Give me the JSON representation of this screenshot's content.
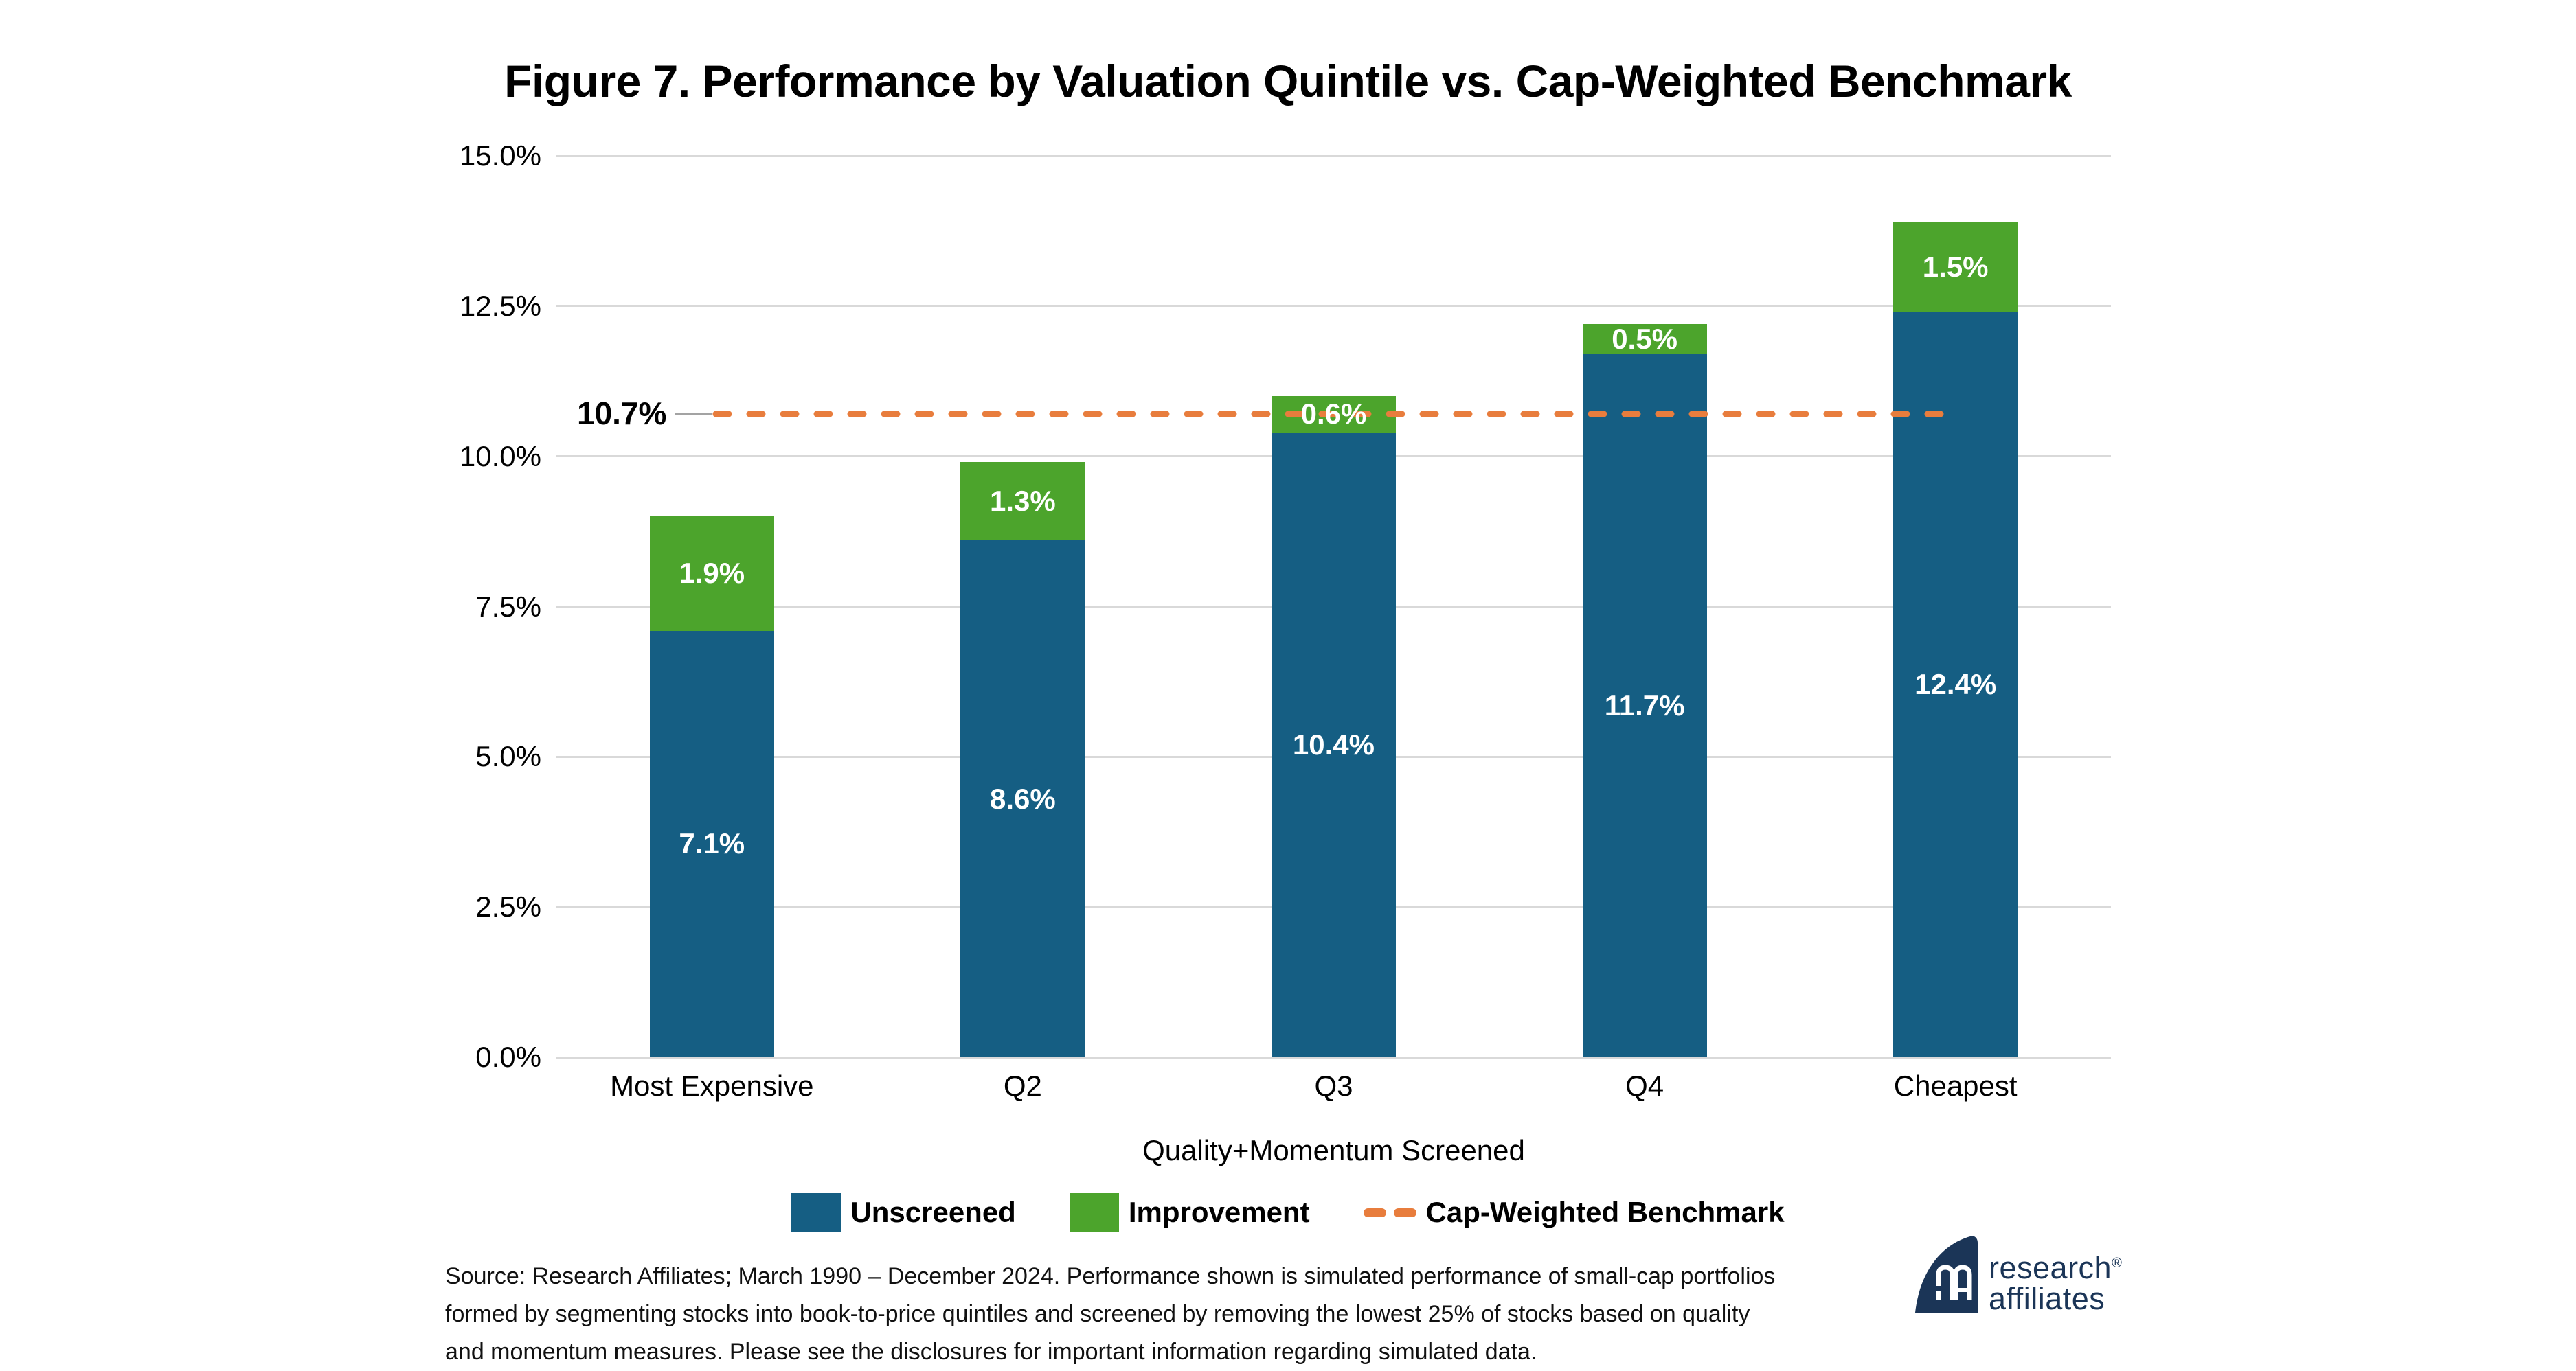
{
  "chart_data": {
    "type": "bar",
    "stacked": true,
    "title": "Figure 7. Performance by Valuation Quintile vs. Cap-Weighted Benchmark",
    "categories": [
      "Most Expensive",
      "Q2",
      "Q3",
      "Q4",
      "Cheapest"
    ],
    "series": [
      {
        "name": "Unscreened",
        "color": "#155E83",
        "values": [
          7.1,
          8.6,
          10.4,
          11.7,
          12.4
        ]
      },
      {
        "name": "Improvement",
        "color": "#4CA42C",
        "values": [
          1.9,
          1.3,
          0.6,
          0.5,
          1.5
        ]
      }
    ],
    "benchmark": {
      "name": "Cap-Weighted Benchmark",
      "value": 10.7,
      "label": "10.7%",
      "color": "#E87D3D",
      "style": "dashed"
    },
    "xlabel": "Quality+Momentum Screened",
    "ylabel": "",
    "ylim": [
      0,
      15
    ],
    "yticks": [
      {
        "value": 0,
        "label": "0.0%"
      },
      {
        "value": 2.5,
        "label": "2.5%"
      },
      {
        "value": 5,
        "label": "5.0%"
      },
      {
        "value": 7.5,
        "label": "7.5%"
      },
      {
        "value": 10,
        "label": "10.0%"
      },
      {
        "value": 12.5,
        "label": "12.5%"
      },
      {
        "value": 15,
        "label": "15.0%"
      }
    ],
    "grid": true,
    "legend_position": "bottom"
  },
  "source": {
    "line1": "Source: Research Affiliates; March 1990 – December 2024. Performance shown is simulated performance of small-cap portfolios",
    "line2": "formed by segmenting stocks into book-to-price quintiles and screened by removing the lowest 25% of stocks based on quality",
    "line3": "and momentum measures. Please see the disclosures for important information regarding simulated data."
  },
  "logo": {
    "word1": "research",
    "word2": "affiliates",
    "registered": "®",
    "color": "#1B3557"
  },
  "colors": {
    "grid": "#D9D9D9",
    "bar_label": "#FFFFFF",
    "leader_line": "#A3A3A3",
    "text": "#000000"
  }
}
